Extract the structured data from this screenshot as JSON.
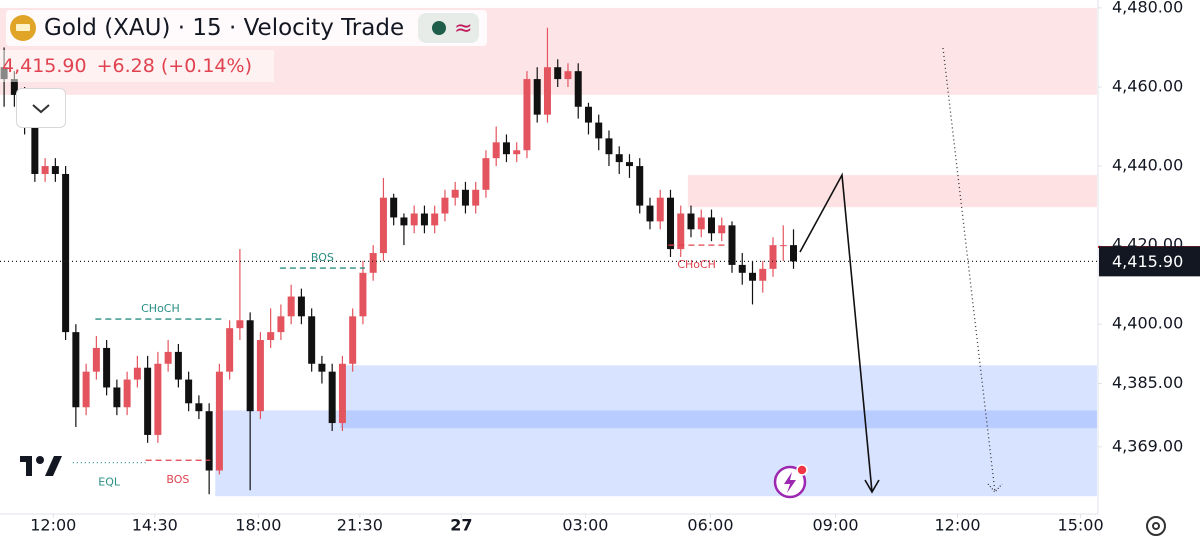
{
  "header": {
    "title": "Gold (XAU) · 15 · Velocity Trade",
    "price": "4,415.90",
    "change": "+6.28 (+0.14%)"
  },
  "chart_data": {
    "type": "candlestick",
    "up_color": "#e4545e",
    "down_color": "#111111",
    "open": [
      4465,
      4462,
      4458,
      4452,
      4438,
      4440,
      4438,
      4398,
      4379,
      4388,
      4394,
      4384,
      4379,
      4386,
      4389,
      4372,
      4390,
      4393,
      4386,
      4380,
      4378,
      4363,
      4388,
      4399,
      4401,
      4378,
      4396,
      4398,
      4402,
      4407,
      4402,
      4390,
      4388,
      4375,
      4390,
      4402,
      4413,
      4418,
      4432,
      4427,
      4425,
      4428,
      4425,
      4428,
      4432,
      4434,
      4430,
      4434,
      4442,
      4446,
      4443,
      4444,
      4462,
      4453,
      4465,
      4462,
      4464,
      4455,
      4451,
      4447,
      4443,
      4441,
      4440,
      4430,
      4426,
      4432,
      4419,
      4428,
      4424,
      4427,
      4423,
      4425,
      4415,
      4413,
      4411,
      4414,
      4420,
      4420
    ],
    "high": [
      4470,
      4464,
      4460,
      4454,
      4442,
      4442,
      4440,
      4400,
      4390,
      4397,
      4396,
      4386,
      4388,
      4392,
      4392,
      4393,
      4396,
      4395,
      4388,
      4382,
      4380,
      4390,
      4401,
      4419,
      4403,
      4398,
      4404,
      4405,
      4410,
      4409,
      4404,
      4392,
      4390,
      4392,
      4404,
      4416,
      4420,
      4437,
      4433,
      4428,
      4430,
      4430,
      4430,
      4434,
      4436,
      4436,
      4436,
      4444,
      4450,
      4448,
      4446,
      4464,
      4465,
      4475,
      4467,
      4466,
      4466,
      4456,
      4453,
      4449,
      4445,
      4443,
      4442,
      4432,
      4434,
      4434,
      4430,
      4430,
      4429,
      4429,
      4427,
      4426,
      4418,
      4416,
      4416,
      4422,
      4425,
      4424
    ],
    "low": [
      4455,
      4455,
      4448,
      4436,
      4436,
      4436,
      4396,
      4374,
      4377,
      4386,
      4382,
      4377,
      4377,
      4384,
      4370,
      4370,
      4388,
      4384,
      4378,
      4376,
      4357,
      4362,
      4386,
      4396,
      4358,
      4376,
      4394,
      4396,
      4400,
      4400,
      4388,
      4385,
      4373,
      4373,
      4388,
      4400,
      4411,
      4416,
      4425,
      4420,
      4423,
      4423,
      4423,
      4426,
      4430,
      4428,
      4428,
      4432,
      4440,
      4441,
      4441,
      4442,
      4451,
      4451,
      4460,
      4460,
      4452,
      4448,
      4444,
      4440,
      4438,
      4437,
      4428,
      4424,
      4424,
      4417,
      4417,
      4422,
      4422,
      4421,
      4421,
      4413,
      4410,
      4405,
      4408,
      4412,
      4416,
      4414
    ],
    "close": [
      4462,
      4458,
      4452,
      4438,
      4440,
      4438,
      4398,
      4379,
      4388,
      4394,
      4384,
      4379,
      4386,
      4389,
      4372,
      4390,
      4393,
      4386,
      4380,
      4378,
      4363,
      4388,
      4399,
      4401,
      4378,
      4396,
      4398,
      4402,
      4407,
      4402,
      4390,
      4388,
      4375,
      4390,
      4402,
      4413,
      4418,
      4432,
      4427,
      4425,
      4428,
      4425,
      4428,
      4432,
      4434,
      4430,
      4434,
      4442,
      4446,
      4443,
      4444,
      4462,
      4453,
      4465,
      4462,
      4464,
      4455,
      4451,
      4447,
      4443,
      4441,
      4440,
      4430,
      4426,
      4432,
      4419,
      4428,
      4424,
      4427,
      4423,
      4425,
      4415,
      4413,
      4411,
      4414,
      4420,
      4420,
      4415.9
    ],
    "xlim": [
      -0.4,
      106.7
    ],
    "xticks": [
      {
        "value": 4.8,
        "label": "12:00"
      },
      {
        "value": 14.7,
        "label": "14:30"
      },
      {
        "value": 24.8,
        "label": "18:00"
      },
      {
        "value": 34.7,
        "label": "21:30"
      },
      {
        "value": 44.6,
        "label": "27"
      },
      {
        "value": 56.7,
        "label": "03:00"
      },
      {
        "value": 68.9,
        "label": "06:00"
      },
      {
        "value": 81.1,
        "label": "09:00"
      },
      {
        "value": 93,
        "label": "12:00"
      },
      {
        "value": 105,
        "label": "15:00"
      }
    ],
    "ylim": [
      4352,
      4482
    ],
    "yticks": [
      {
        "value": 4369,
        "label": "4,369.00"
      },
      {
        "value": 4385,
        "label": "4,385.00"
      },
      {
        "value": 4400,
        "label": "4,400.00"
      },
      {
        "value": 4420,
        "label": "4,420.00"
      },
      {
        "value": 4440,
        "label": "4,440.00"
      },
      {
        "value": 4460,
        "label": "4,460.00"
      },
      {
        "value": 4480,
        "label": "4,480.00"
      }
    ],
    "last_price": {
      "value": 4415.9,
      "label": "4,415.90"
    },
    "zones": [
      {
        "from": -0.4,
        "to": 106.6,
        "y": [
          4480,
          4458
        ],
        "color": "rgba(242,54,69,0.13)"
      },
      {
        "from": 66.7,
        "to": 106.6,
        "y": [
          4437.7,
          4429.6
        ],
        "color": "rgba(242,54,69,0.15)"
      },
      {
        "from": 20.6,
        "to": 106.6,
        "y": [
          4378.2,
          4356.5
        ],
        "color": "rgba(41,98,255,0.18)"
      },
      {
        "from": 32.8,
        "to": 106.6,
        "y": [
          4389.6,
          4373.7
        ],
        "color": "rgba(41,98,255,0.18)"
      }
    ],
    "annotations": [
      {
        "text": "CHoCH",
        "color": "#2a8f84",
        "level": 4401.3,
        "from": 8.9,
        "to": 21.6,
        "place": "above",
        "dash": "6,4"
      },
      {
        "text": "BOS",
        "color": "#2a8f84",
        "level": 4414.2,
        "from": 26.9,
        "to": 35.2,
        "place": "above",
        "dash": "6,4"
      },
      {
        "text": "EQL",
        "color": "#2a8f84",
        "level": 4365,
        "from": 6.7,
        "to": 13.8,
        "place": "below",
        "dash": "1,3"
      },
      {
        "text": "BOS",
        "color": "#e0434f",
        "level": 4365.6,
        "from": 13.8,
        "to": 20.1,
        "place": "below",
        "dash": "6,4"
      },
      {
        "text": "CHoCH",
        "color": "#e0434f",
        "level": 4420,
        "from": 64.8,
        "to": 70.3,
        "place": "below",
        "dash": "6,4"
      }
    ]
  }
}
